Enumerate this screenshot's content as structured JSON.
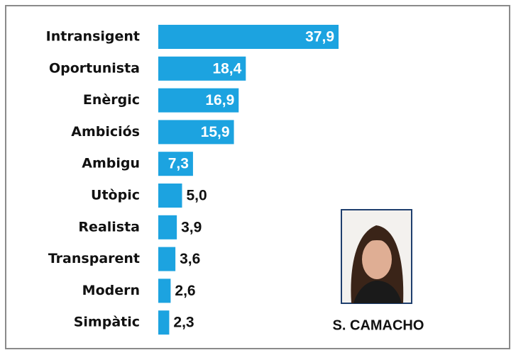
{
  "chart_data": {
    "type": "barh",
    "categories": [
      "Intransigent",
      "Oportunista",
      "Enèrgic",
      "Ambiciós",
      "Ambigu",
      "Utòpic",
      "Realista",
      "Transparent",
      "Modern",
      "Simpàtic"
    ],
    "values": [
      37.9,
      18.4,
      16.9,
      15.9,
      7.3,
      5.0,
      3.9,
      3.6,
      2.6,
      2.3
    ],
    "value_labels": [
      "37,9",
      "18,4",
      "16,9",
      "15,9",
      "7,3",
      "5,0",
      "3,9",
      "3,6",
      "2,6",
      "2,3"
    ],
    "color": "#1ca3e0",
    "annotation": "S. CAMACHO"
  }
}
